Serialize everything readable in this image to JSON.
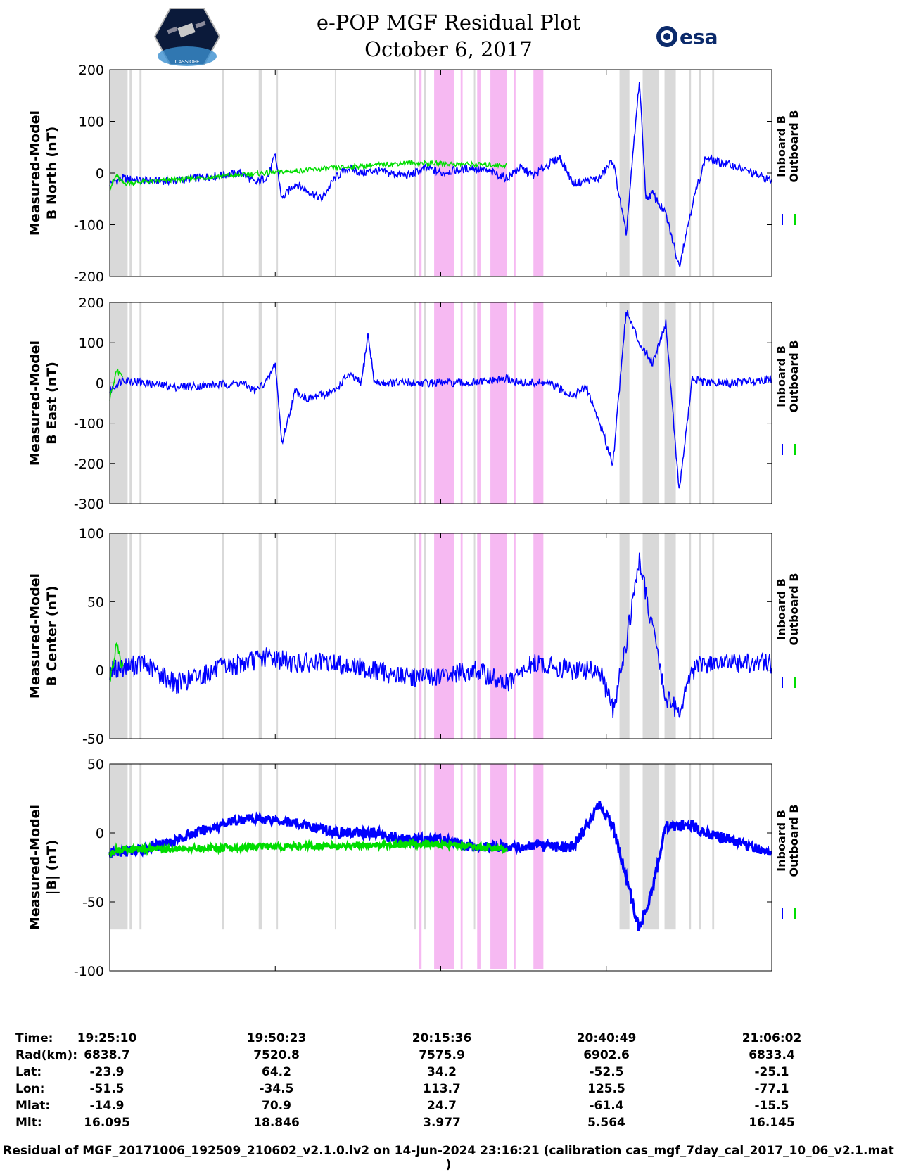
{
  "header": {
    "title_line1": "e-POP MGF Residual Plot",
    "title_line2": "October 6, 2017",
    "left_logo_text": "CASSIOPE",
    "right_logo_text": "esa"
  },
  "chart_data": [
    {
      "type": "line",
      "ylabel_line1": "Measured-Model",
      "ylabel_line2": "B North (nT)",
      "ylim": [
        -200,
        200
      ],
      "yticks": [
        200,
        100,
        0,
        -100,
        -200
      ],
      "legend": [
        "Inboard B",
        "Outboard B"
      ],
      "series": [
        {
          "name": "Inboard B",
          "color": "#0000ff",
          "x": [
            0,
            0.02,
            0.05,
            0.1,
            0.16,
            0.2,
            0.22,
            0.24,
            0.25,
            0.26,
            0.28,
            0.3,
            0.32,
            0.34,
            0.36,
            0.38,
            0.4,
            0.42,
            0.45,
            0.48,
            0.5,
            0.52,
            0.55,
            0.58,
            0.6,
            0.62,
            0.64,
            0.66,
            0.68,
            0.7,
            0.74,
            0.76,
            0.78,
            0.8,
            0.81,
            0.82,
            0.84,
            0.86,
            0.88,
            0.9,
            0.92,
            0.94,
            0.96,
            1.0
          ],
          "y": [
            -20,
            -10,
            -15,
            -15,
            -5,
            0,
            -20,
            -5,
            35,
            -50,
            -20,
            -35,
            -50,
            -10,
            10,
            0,
            5,
            0,
            -5,
            10,
            0,
            5,
            10,
            0,
            -10,
            10,
            -5,
            15,
            30,
            -20,
            -10,
            25,
            -120,
            180,
            -50,
            -40,
            -80,
            -180,
            -60,
            30,
            20,
            15,
            5,
            -15
          ]
        },
        {
          "name": "Outboard B",
          "color": "#00dd00",
          "x": [
            0,
            0.01,
            0.02,
            0.45,
            0.6
          ],
          "y": [
            -30,
            -5,
            -20,
            20,
            15
          ]
        }
      ]
    },
    {
      "type": "line",
      "ylabel_line1": "Measured-Model",
      "ylabel_line2": "B East (nT)",
      "ylim": [
        -300,
        200
      ],
      "yticks": [
        200,
        100,
        0,
        -100,
        -200,
        -300
      ],
      "legend": [
        "Inboard B",
        "Outboard B"
      ],
      "series": [
        {
          "name": "Inboard B",
          "color": "#0000ff",
          "x": [
            0,
            0.02,
            0.05,
            0.1,
            0.16,
            0.2,
            0.22,
            0.24,
            0.25,
            0.26,
            0.28,
            0.3,
            0.32,
            0.34,
            0.36,
            0.38,
            0.39,
            0.4,
            0.45,
            0.5,
            0.55,
            0.6,
            0.62,
            0.66,
            0.7,
            0.72,
            0.74,
            0.76,
            0.78,
            0.8,
            0.82,
            0.84,
            0.86,
            0.88,
            0.9,
            0.94,
            1.0
          ],
          "y": [
            -20,
            10,
            0,
            -10,
            -5,
            0,
            -20,
            10,
            50,
            -150,
            -20,
            -40,
            -30,
            -20,
            20,
            0,
            120,
            0,
            0,
            0,
            0,
            10,
            0,
            0,
            -30,
            -10,
            -100,
            -200,
            180,
            100,
            50,
            150,
            -270,
            10,
            0,
            0,
            10
          ]
        },
        {
          "name": "Outboard B",
          "color": "#00dd00",
          "x": [
            0,
            0.01,
            0.02
          ],
          "y": [
            -40,
            30,
            20
          ]
        }
      ]
    },
    {
      "type": "line",
      "ylabel_line1": "Measured-Model",
      "ylabel_line2": "B Center (nT)",
      "ylim": [
        -50,
        100
      ],
      "yticks": [
        100,
        50,
        0,
        -50
      ],
      "legend": [
        "Inboard B",
        "Outboard B"
      ],
      "series": [
        {
          "name": "Inboard B",
          "color": "#0000ff",
          "x": [
            0,
            0.05,
            0.1,
            0.16,
            0.2,
            0.24,
            0.28,
            0.3,
            0.34,
            0.4,
            0.45,
            0.5,
            0.55,
            0.6,
            0.64,
            0.7,
            0.74,
            0.76,
            0.78,
            0.8,
            0.82,
            0.84,
            0.86,
            0.88,
            0.9,
            0.94,
            1.0
          ],
          "y": [
            0,
            5,
            -10,
            0,
            5,
            10,
            5,
            5,
            5,
            0,
            -5,
            -5,
            0,
            -10,
            5,
            0,
            0,
            -30,
            20,
            80,
            30,
            -20,
            -30,
            0,
            5,
            5,
            5
          ]
        },
        {
          "name": "Outboard B",
          "color": "#00dd00",
          "x": [
            0,
            0.01,
            0.02
          ],
          "y": [
            -10,
            20,
            0
          ]
        }
      ]
    },
    {
      "type": "line",
      "ylabel_line1": "Measured-Model",
      "ylabel_line2": "|B| (nT)",
      "ylim": [
        -100,
        50
      ],
      "yticks": [
        50,
        0,
        -50,
        -100
      ],
      "legend": [
        "Inboard B",
        "Outboard B"
      ],
      "series": [
        {
          "name": "Inboard B",
          "color": "#0000ff",
          "x": [
            0,
            0.05,
            0.1,
            0.16,
            0.2,
            0.25,
            0.3,
            0.35,
            0.4,
            0.45,
            0.5,
            0.55,
            0.6,
            0.65,
            0.7,
            0.74,
            0.76,
            0.8,
            0.82,
            0.84,
            0.86,
            0.88,
            0.9,
            0.94,
            1.0
          ],
          "y": [
            -15,
            -12,
            -5,
            5,
            10,
            10,
            5,
            0,
            0,
            -5,
            -5,
            -10,
            -10,
            -10,
            -10,
            20,
            5,
            -70,
            -40,
            5,
            5,
            5,
            0,
            -5,
            -15
          ]
        },
        {
          "name": "Outboard B",
          "color": "#00dd00",
          "x": [
            0,
            0.01,
            0.5,
            0.6
          ],
          "y": [
            -15,
            -12,
            -8,
            -12
          ]
        }
      ]
    }
  ],
  "time_axis": {
    "row_labels": [
      "Time:",
      "Rad(km):",
      "Lat:",
      "Lon:",
      "Mlat:",
      "Mlt:"
    ],
    "columns": [
      {
        "time": "19:25:10",
        "rad": "6838.7",
        "lat": "-23.9",
        "lon": "-51.5",
        "mlat": "-14.9",
        "mlt": "16.095"
      },
      {
        "time": "19:50:23",
        "rad": "7520.8",
        "lat": "64.2",
        "lon": "-34.5",
        "mlat": "70.9",
        "mlt": "18.846"
      },
      {
        "time": "20:15:36",
        "rad": "7575.9",
        "lat": "34.2",
        "lon": "113.7",
        "mlat": "24.7",
        "mlt": "3.977"
      },
      {
        "time": "20:40:49",
        "rad": "6902.6",
        "lat": "-52.5",
        "lon": "125.5",
        "mlat": "-61.4",
        "mlt": "5.564"
      },
      {
        "time": "21:06:02",
        "rad": "6833.4",
        "lat": "-25.1",
        "lon": "-77.1",
        "mlat": "-15.5",
        "mlt": "16.145"
      }
    ]
  },
  "footer": "Residual of MGF_20171006_192509_210602_v2.1.0.lv2 on 14-Jun-2024 23:16:21 (calibration cas_mgf_7day_cal_2017_10_06_v2.1.mat )"
}
